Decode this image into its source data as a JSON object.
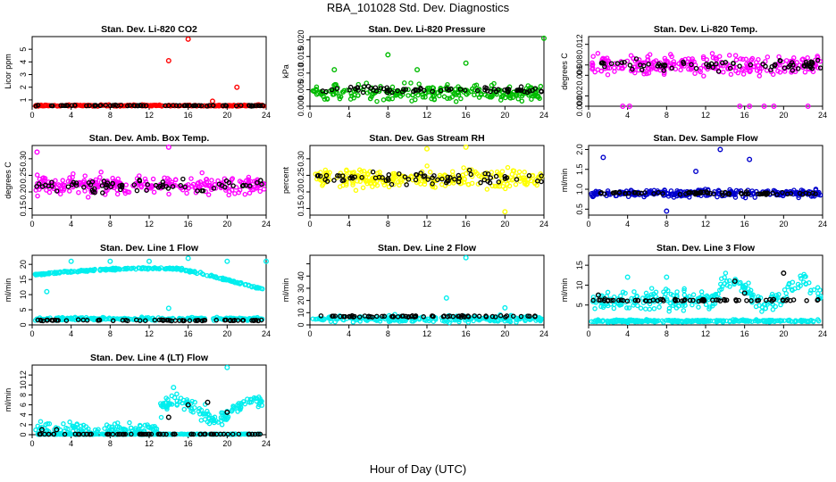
{
  "figure": {
    "title": "RBA_101028  Std. Dev. Diagnostics",
    "xlabel": "Hour of Day (UTC)"
  },
  "chart_data": [
    {
      "type": "scatter",
      "title": "Stan. Dev. Li-820 CO2",
      "ylabel": "Licor ppm",
      "xlim": [
        0,
        24
      ],
      "ylim": [
        0.5,
        6
      ],
      "xticks": [
        0,
        4,
        8,
        12,
        16,
        20,
        24
      ],
      "yticks": [
        1,
        2,
        3,
        4,
        5
      ],
      "yticklabels": [
        "1",
        "2",
        "3",
        "4",
        "5"
      ],
      "series": [
        {
          "color": "#ff0000",
          "base": 0.55,
          "spread": 0.1,
          "outliers": [
            [
              14,
              4.1
            ],
            [
              16,
              5.8
            ],
            [
              21,
              2.0
            ],
            [
              18.5,
              0.9
            ]
          ]
        },
        {
          "color": "#000000",
          "base": 0.55,
          "spread": 0.06,
          "outliers": []
        }
      ]
    },
    {
      "type": "scatter",
      "title": "Stan. Dev. Li-820 Pressure",
      "ylabel": "kPa",
      "xlim": [
        0,
        24
      ],
      "ylim": [
        0,
        0.021
      ],
      "xticks": [
        0,
        4,
        8,
        12,
        16,
        20,
        24
      ],
      "yticks": [
        0.0,
        0.005,
        0.01,
        0.015,
        0.02
      ],
      "yticklabels": [
        "0.000",
        "0.005",
        "0.010",
        "0.015",
        "0.020"
      ],
      "series": [
        {
          "color": "#00bb00",
          "base": 0.004,
          "spread": 0.004,
          "outliers": [
            [
              2.5,
              0.011
            ],
            [
              8,
              0.0155
            ],
            [
              11,
              0.011
            ],
            [
              16,
              0.013
            ],
            [
              24,
              0.0205
            ]
          ]
        },
        {
          "color": "#000000",
          "base": 0.005,
          "spread": 0.0015,
          "outliers": []
        }
      ]
    },
    {
      "type": "scatter",
      "title": "Stan. Dev. Li-820 Temp.",
      "ylabel": "degrees C",
      "xlim": [
        0,
        24
      ],
      "ylim": [
        0,
        0.0135
      ],
      "xticks": [
        0,
        4,
        8,
        12,
        16,
        20,
        24
      ],
      "yticks": [
        0.0,
        0.002,
        0.006,
        0.008,
        0.012
      ],
      "yticklabels": [
        "0.000",
        "0.002",
        "0.006",
        "0.008",
        "0.012"
      ],
      "series": [
        {
          "color": "#ff00ff",
          "base": 0.008,
          "spread": 0.003,
          "outliers": [
            [
              3.5,
              0.0
            ],
            [
              4.2,
              0.0
            ],
            [
              15.5,
              0.0
            ],
            [
              16.5,
              0.0
            ],
            [
              18,
              0.0
            ],
            [
              19,
              0.0
            ],
            [
              22.5,
              0.0
            ]
          ]
        },
        {
          "color": "#000000",
          "base": 0.008,
          "spread": 0.002,
          "outliers": []
        }
      ]
    },
    {
      "type": "scatter",
      "title": "Stan. Dev. Amb. Box Temp.",
      "ylabel": "degrees C",
      "xlim": [
        0,
        24
      ],
      "ylim": [
        0.13,
        0.34
      ],
      "xticks": [
        0,
        4,
        8,
        12,
        16,
        20,
        24
      ],
      "yticks": [
        0.15,
        0.2,
        0.25,
        0.3
      ],
      "yticklabels": [
        "0.15",
        "0.20",
        "0.25",
        "0.30"
      ],
      "series": [
        {
          "color": "#ff00ff",
          "base": 0.22,
          "spread": 0.045,
          "outliers": [
            [
              14,
              0.335
            ],
            [
              0.5,
              0.32
            ]
          ]
        },
        {
          "color": "#000000",
          "base": 0.22,
          "spread": 0.03,
          "outliers": []
        }
      ]
    },
    {
      "type": "scatter",
      "title": "Stan. Dev. Gas Stream RH",
      "ylabel": "percent",
      "xlim": [
        0,
        24
      ],
      "ylim": [
        0.13,
        0.34
      ],
      "xticks": [
        0,
        4,
        8,
        12,
        16,
        20,
        24
      ],
      "yticks": [
        0.15,
        0.2,
        0.25,
        0.3
      ],
      "yticklabels": [
        "0.15",
        "0.20",
        "0.25",
        "0.30"
      ],
      "series": [
        {
          "color": "#ffff00",
          "base": 0.24,
          "spread": 0.045,
          "outliers": [
            [
              16,
              0.335
            ],
            [
              20,
              0.14
            ],
            [
              12,
              0.33
            ]
          ]
        },
        {
          "color": "#000000",
          "base": 0.24,
          "spread": 0.03,
          "outliers": []
        }
      ]
    },
    {
      "type": "scatter",
      "title": "Stan. Dev. Sample Flow",
      "ylabel": "ml/min",
      "xlim": [
        0,
        24
      ],
      "ylim": [
        0.35,
        2.1
      ],
      "xticks": [
        0,
        4,
        8,
        12,
        16,
        20,
        24
      ],
      "yticks": [
        0.5,
        1.0,
        1.5,
        2.0
      ],
      "yticklabels": [
        "0.5",
        "1.0",
        "1.5",
        "2.0"
      ],
      "series": [
        {
          "color": "#0000cc",
          "base": 0.9,
          "spread": 0.15,
          "outliers": [
            [
              1.5,
              1.8
            ],
            [
              13.5,
              2.0
            ],
            [
              16.5,
              1.75
            ],
            [
              8,
              0.45
            ],
            [
              11,
              1.45
            ]
          ]
        },
        {
          "color": "#000000",
          "base": 0.9,
          "spread": 0.06,
          "outliers": []
        }
      ]
    },
    {
      "type": "scatter",
      "title": "Stan. Dev. Line 1 Flow",
      "ylabel": "ml/min",
      "xlim": [
        0,
        24
      ],
      "ylim": [
        0,
        23
      ],
      "xticks": [
        0,
        4,
        8,
        12,
        16,
        20,
        24
      ],
      "yticks": [
        0,
        5,
        10,
        15,
        20
      ],
      "yticklabels": [
        "0",
        "5",
        "10",
        "15",
        "20"
      ],
      "series": [
        {
          "color": "#00eeee",
          "profile": "line1",
          "spread": 0.5,
          "outliers": [
            [
              1.5,
              11
            ],
            [
              4,
              21
            ],
            [
              8,
              21
            ],
            [
              12,
              21
            ],
            [
              16,
              22
            ],
            [
              20,
              21
            ],
            [
              24,
              21
            ],
            [
              14,
              5.5
            ]
          ]
        },
        {
          "color": "#00eeee",
          "base": 2.0,
          "spread": 0.8,
          "outliers": []
        },
        {
          "color": "#000000",
          "base": 1.5,
          "spread": 0.3,
          "outliers": []
        }
      ]
    },
    {
      "type": "scatter",
      "title": "Stan. Dev. Line 2 Flow",
      "ylabel": "ml/min",
      "xlim": [
        0,
        24
      ],
      "ylim": [
        0,
        57
      ],
      "xticks": [
        0,
        4,
        8,
        12,
        16,
        20,
        24
      ],
      "yticks": [
        0,
        10,
        20,
        30,
        40,
        50
      ],
      "yticklabels": [
        "0",
        "10",
        "20",
        "30",
        "40",
        ""
      ],
      "series": [
        {
          "color": "#00eeee",
          "base": 5,
          "spread": 4,
          "outliers": [
            [
              16,
              55
            ],
            [
              14,
              22
            ],
            [
              20,
              14
            ]
          ]
        },
        {
          "color": "#000000",
          "base": 7,
          "spread": 1,
          "outliers": []
        }
      ]
    },
    {
      "type": "scatter",
      "title": "Stan. Dev. Line 3 Flow",
      "ylabel": "ml/min",
      "xlim": [
        0,
        24
      ],
      "ylim": [
        0,
        17.5
      ],
      "xticks": [
        0,
        4,
        8,
        12,
        16,
        20,
        24
      ],
      "yticks": [
        5,
        10,
        15
      ],
      "yticklabels": [
        "5",
        "10",
        "15"
      ],
      "series": [
        {
          "color": "#00eeee",
          "profile": "line3",
          "spread": 4,
          "outliers": [
            [
              4,
              12
            ],
            [
              8,
              12
            ],
            [
              1.5,
              6.5
            ]
          ]
        },
        {
          "color": "#00eeee",
          "base": 1.0,
          "spread": 0.5,
          "outliers": []
        },
        {
          "color": "#000000",
          "base": 6.2,
          "spread": 0.4,
          "outliers": [
            [
              1,
              7.5
            ],
            [
              15,
              11
            ],
            [
              16,
              8
            ],
            [
              20,
              13
            ]
          ]
        }
      ]
    },
    {
      "type": "scatter",
      "title": "Stan. Dev. Line 4 (LT) Flow",
      "ylabel": "ml/min",
      "xlim": [
        0,
        24
      ],
      "ylim": [
        0,
        14
      ],
      "xticks": [
        0,
        4,
        8,
        12,
        16,
        20,
        24
      ],
      "yticks": [
        0,
        2,
        4,
        6,
        8,
        10,
        12
      ],
      "yticklabels": [
        "0",
        "2",
        "4",
        "6",
        "8",
        "10",
        "12"
      ],
      "series": [
        {
          "color": "#00eeee",
          "profile": "line4",
          "spread": 2.5,
          "outliers": [
            [
              20,
              13.5
            ],
            [
              14.5,
              9.5
            ],
            [
              12,
              1.5
            ]
          ]
        },
        {
          "color": "#00eeee",
          "base": 0.1,
          "spread": 0.1,
          "outliers": []
        },
        {
          "color": "#000000",
          "base": 0.1,
          "spread": 0.05,
          "outliers": [
            [
              14,
              3.5
            ],
            [
              16,
              6
            ],
            [
              18,
              6.5
            ],
            [
              20,
              4.5
            ],
            [
              1,
              1.0
            ],
            [
              2.5,
              1.0
            ]
          ]
        }
      ]
    }
  ]
}
